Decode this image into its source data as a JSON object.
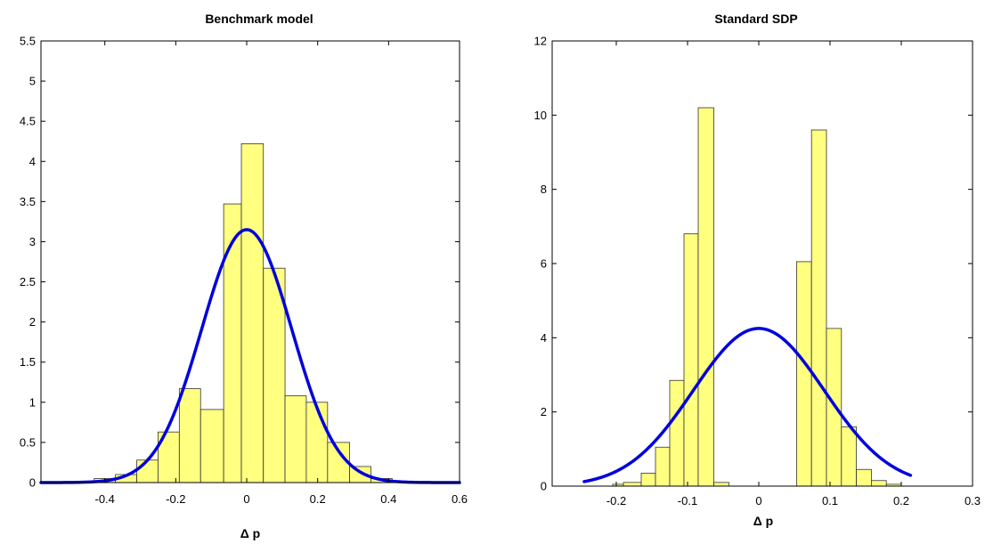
{
  "chart_data": [
    {
      "type": "bar",
      "title": "Benchmark model",
      "xlabel": "Δ p",
      "ylabel": "",
      "xlim": [
        -0.58,
        0.6
      ],
      "ylim": [
        0,
        5.5
      ],
      "xticks": [
        -0.4,
        -0.2,
        0,
        0.2,
        0.4,
        0.6
      ],
      "xtick_labels": [
        "-0.4",
        "-0.2",
        "0",
        "0.2",
        "0.4",
        "0.6"
      ],
      "yticks": [
        0,
        0.5,
        1,
        1.5,
        2,
        2.5,
        3,
        3.5,
        4,
        4.5,
        5,
        5.5
      ],
      "ytick_labels": [
        "0",
        "0.5",
        "1",
        "1.5",
        "2",
        "2.5",
        "3",
        "3.5",
        "4",
        "4.5",
        "5",
        "5.5"
      ],
      "grid": false,
      "bar_color": "#ffff80",
      "curve_color": "#0000dd",
      "bins": [
        {
          "x0": -0.43,
          "x1": -0.37,
          "value": 0.05
        },
        {
          "x0": -0.37,
          "x1": -0.31,
          "value": 0.1
        },
        {
          "x0": -0.31,
          "x1": -0.25,
          "value": 0.28
        },
        {
          "x0": -0.25,
          "x1": -0.19,
          "value": 0.63
        },
        {
          "x0": -0.19,
          "x1": -0.13,
          "value": 1.17
        },
        {
          "x0": -0.13,
          "x1": -0.065,
          "value": 0.91
        },
        {
          "x0": -0.065,
          "x1": -0.015,
          "value": 3.47
        },
        {
          "x0": -0.015,
          "x1": 0.047,
          "value": 4.22
        },
        {
          "x0": 0.047,
          "x1": 0.108,
          "value": 2.67
        },
        {
          "x0": 0.108,
          "x1": 0.168,
          "value": 1.08
        },
        {
          "x0": 0.168,
          "x1": 0.228,
          "value": 1.0
        },
        {
          "x0": 0.228,
          "x1": 0.29,
          "value": 0.5
        },
        {
          "x0": 0.29,
          "x1": 0.35,
          "value": 0.2
        },
        {
          "x0": 0.35,
          "x1": 0.41,
          "value": 0.05
        }
      ],
      "curve": {
        "type": "normal",
        "mean": 0.0,
        "peak": 3.15,
        "std": 0.127,
        "x_from": -0.58,
        "x_to": 0.6
      }
    },
    {
      "type": "bar",
      "title": "Standard SDP",
      "xlabel": "Δ p",
      "ylabel": "",
      "xlim": [
        -0.29,
        0.3
      ],
      "ylim": [
        0,
        12
      ],
      "xticks": [
        -0.2,
        -0.1,
        0,
        0.1,
        0.2,
        0.3
      ],
      "xtick_labels": [
        "-0.2",
        "-0.1",
        "0",
        "0.1",
        "0.2",
        "0.3"
      ],
      "yticks": [
        0,
        2,
        4,
        6,
        8,
        10,
        12
      ],
      "ytick_labels": [
        "0",
        "2",
        "4",
        "6",
        "8",
        "10",
        "12"
      ],
      "grid": false,
      "bar_color": "#ffff80",
      "curve_color": "#0000dd",
      "bins": [
        {
          "x0": -0.205,
          "x1": -0.19,
          "value": 0.05
        },
        {
          "x0": -0.19,
          "x1": -0.165,
          "value": 0.1
        },
        {
          "x0": -0.165,
          "x1": -0.145,
          "value": 0.35
        },
        {
          "x0": -0.145,
          "x1": -0.125,
          "value": 1.05
        },
        {
          "x0": -0.125,
          "x1": -0.105,
          "value": 2.85
        },
        {
          "x0": -0.105,
          "x1": -0.085,
          "value": 6.8
        },
        {
          "x0": -0.085,
          "x1": -0.063,
          "value": 10.2
        },
        {
          "x0": -0.063,
          "x1": -0.042,
          "value": 0.1
        },
        {
          "x0": 0.053,
          "x1": 0.074,
          "value": 6.05
        },
        {
          "x0": 0.074,
          "x1": 0.095,
          "value": 9.6
        },
        {
          "x0": 0.095,
          "x1": 0.116,
          "value": 4.25
        },
        {
          "x0": 0.116,
          "x1": 0.137,
          "value": 1.6
        },
        {
          "x0": 0.137,
          "x1": 0.158,
          "value": 0.45
        },
        {
          "x0": 0.158,
          "x1": 0.179,
          "value": 0.15
        },
        {
          "x0": 0.179,
          "x1": 0.2,
          "value": 0.05
        }
      ],
      "curve": {
        "type": "normal",
        "mean": 0.0,
        "peak": 4.25,
        "std": 0.092,
        "x_from": -0.245,
        "x_to": 0.213
      }
    }
  ]
}
